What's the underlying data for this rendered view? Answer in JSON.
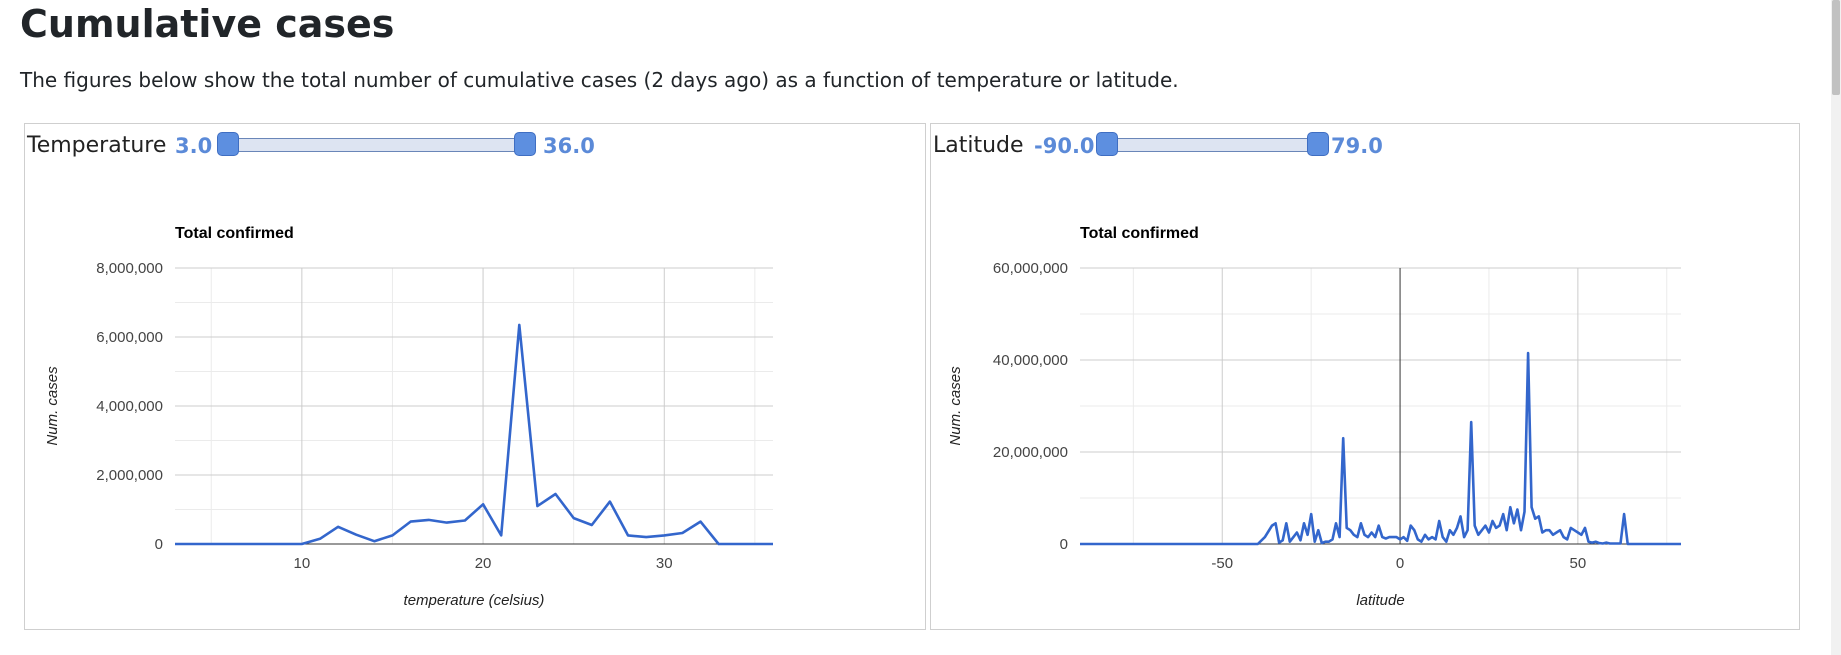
{
  "page": {
    "title": "Cumulative cases",
    "description": "The figures below show the total number of cumulative cases (2 days ago) as a function of temperature or latitude."
  },
  "temperature_filter": {
    "label": "Temperature",
    "min_value": "3.0",
    "max_value": "36.0",
    "range": [
      3.0,
      36.0
    ]
  },
  "latitude_filter": {
    "label": "Latitude",
    "min_value": "-90.0",
    "max_value": "79.0",
    "range": [
      -90.0,
      79.0
    ]
  },
  "colors": {
    "series": "#3366cc",
    "slider_accent": "#5b8ad8",
    "grid": "#cccccc",
    "minor_grid": "#ebebeb"
  },
  "chart_data": [
    {
      "type": "line",
      "title": "Total confirmed",
      "xlabel": "temperature (celsius)",
      "ylabel": "Num. cases",
      "xlim": [
        3,
        36
      ],
      "ylim": [
        0,
        8000000
      ],
      "x_ticks": [
        10,
        20,
        30
      ],
      "x_tick_labels": [
        "10",
        "20",
        "30"
      ],
      "y_ticks": [
        0,
        2000000,
        4000000,
        6000000,
        8000000
      ],
      "y_tick_labels": [
        "0",
        "2,000,000",
        "4,000,000",
        "6,000,000",
        "8,000,000"
      ],
      "grid": true,
      "series": [
        {
          "x": [
            3,
            4,
            5,
            6,
            7,
            8,
            9,
            10,
            11,
            12,
            13,
            14,
            15,
            16,
            17,
            18,
            19,
            20,
            21,
            22,
            23,
            24,
            25,
            26,
            27,
            28,
            29,
            30,
            31,
            32,
            33,
            34,
            35,
            36
          ],
          "y": [
            0,
            0,
            0,
            0,
            0,
            0,
            0,
            0,
            150000,
            500000,
            270000,
            80000,
            250000,
            650000,
            700000,
            620000,
            680000,
            1150000,
            250000,
            6350000,
            1100000,
            1450000,
            750000,
            550000,
            1230000,
            250000,
            200000,
            250000,
            320000,
            650000,
            0,
            0,
            0,
            0
          ]
        }
      ]
    },
    {
      "type": "line",
      "title": "Total confirmed",
      "xlabel": "latitude",
      "ylabel": "Num. cases",
      "xlim": [
        -90,
        79
      ],
      "ylim": [
        0,
        60000000
      ],
      "x_ticks": [
        -50,
        0,
        50
      ],
      "x_tick_labels": [
        "-50",
        "0",
        "50"
      ],
      "y_ticks": [
        0,
        20000000,
        40000000,
        60000000
      ],
      "y_tick_labels": [
        "0",
        "20,000,000",
        "40,000,000",
        "60,000,000"
      ],
      "grid": true,
      "series": [
        {
          "x": [
            -90,
            -50,
            -40,
            -38,
            -36,
            -35,
            -34,
            -33,
            -32,
            -31,
            -30,
            -29,
            -28,
            -27,
            -26,
            -25,
            -24,
            -23,
            -22,
            -21,
            -20,
            -19,
            -18,
            -17,
            -16,
            -15,
            -14,
            -13,
            -12,
            -11,
            -10,
            -9,
            -8,
            -7,
            -6,
            -5,
            -4,
            -3,
            -2,
            -1,
            0,
            1,
            2,
            3,
            4,
            5,
            6,
            7,
            8,
            9,
            10,
            11,
            12,
            13,
            14,
            15,
            16,
            17,
            18,
            19,
            20,
            21,
            22,
            23,
            24,
            25,
            26,
            27,
            28,
            29,
            30,
            31,
            32,
            33,
            34,
            35,
            36,
            37,
            38,
            39,
            40,
            41,
            42,
            43,
            44,
            45,
            46,
            47,
            48,
            49,
            50,
            51,
            52,
            53,
            54,
            55,
            56,
            57,
            58,
            59,
            60,
            61,
            62,
            63,
            64,
            65,
            66,
            67,
            68,
            79
          ],
          "y": [
            0,
            0,
            0,
            1500000,
            4000000,
            4500000,
            300000,
            800000,
            4500000,
            500000,
            1500000,
            2500000,
            800000,
            4500000,
            2000000,
            6500000,
            500000,
            3000000,
            200000,
            500000,
            500000,
            1000000,
            4500000,
            1500000,
            23000000,
            3500000,
            3000000,
            2000000,
            1500000,
            4500000,
            2000000,
            1500000,
            2500000,
            1500000,
            4000000,
            1500000,
            1200000,
            1500000,
            1500000,
            1500000,
            1000000,
            1500000,
            700000,
            4000000,
            3000000,
            1000000,
            500000,
            2000000,
            1000000,
            1500000,
            1000000,
            5000000,
            1500000,
            500000,
            3000000,
            2000000,
            3500000,
            6000000,
            1500000,
            3000000,
            26500000,
            4000000,
            2000000,
            3000000,
            4000000,
            2500000,
            5000000,
            3500000,
            4000000,
            6500000,
            3000000,
            8000000,
            4500000,
            7500000,
            3000000,
            7000000,
            41500000,
            8000000,
            5500000,
            6000000,
            2500000,
            3000000,
            3000000,
            2000000,
            2500000,
            3000000,
            1500000,
            1000000,
            3500000,
            3000000,
            2500000,
            2000000,
            3500000,
            500000,
            300000,
            500000,
            200000,
            100000,
            300000,
            100000,
            100000,
            100000,
            100000,
            6500000,
            0,
            0,
            0,
            0,
            0,
            0
          ]
        }
      ]
    }
  ]
}
